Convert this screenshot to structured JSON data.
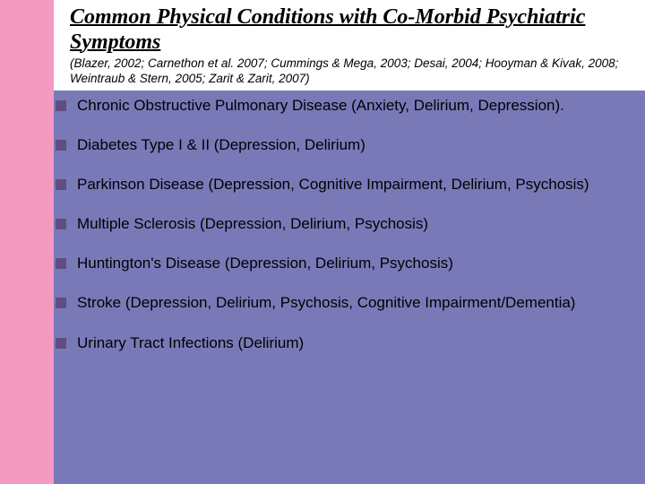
{
  "colors": {
    "left_bar": "#f49ac1",
    "body_bg": "#7a79b8",
    "header_bg": "#ffffff",
    "bullet_square": "#604d84",
    "text": "#000000"
  },
  "typography": {
    "title_family": "Georgia, serif",
    "title_weight": "bold",
    "title_style": "italic",
    "title_fontsize": 24,
    "citation_fontsize": 13.5,
    "body_fontsize": 17
  },
  "header": {
    "title": "Common Physical Conditions with Co-Morbid Psychiatric Symptoms",
    "citation": "(Blazer, 2002; Carnethon et al. 2007; Cummings & Mega, 2003; Desai, 2004; Hooyman & Kivak, 2008; Weintraub & Stern, 2005; Zarit & Zarit, 2007)"
  },
  "bullets": [
    {
      "text": "Chronic Obstructive Pulmonary Disease (Anxiety, Delirium, Depression)."
    },
    {
      "text": "Diabetes Type I & II (Depression, Delirium)"
    },
    {
      "text": "Parkinson Disease (Depression, Cognitive Impairment, Delirium, Psychosis)"
    },
    {
      "text": "Multiple Sclerosis (Depression, Delirium, Psychosis)"
    },
    {
      "text": "Huntington's Disease (Depression, Delirium, Psychosis)"
    },
    {
      "text": "Stroke (Depression, Delirium, Psychosis, Cognitive Impairment/Dementia)"
    },
    {
      "text": "Urinary Tract Infections (Delirium)"
    }
  ]
}
